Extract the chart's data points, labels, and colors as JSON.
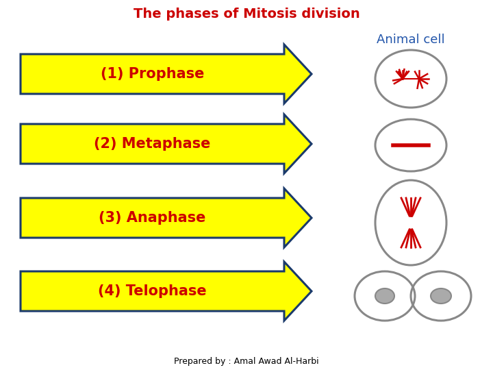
{
  "title": "The phases of Mitosis division",
  "title_color": "#CC0000",
  "title_fontsize": 14,
  "animal_cell_label": "Animal cell",
  "animal_cell_color": "#2255AA",
  "phases": [
    "(1) Prophase",
    "(2) Metaphase",
    "(3) Anaphase",
    "(4) Telophase"
  ],
  "phase_text_color": "#CC0000",
  "phase_fontsize": 15,
  "arrow_fill": "#FFFF00",
  "arrow_edge": "#1a3a6b",
  "footer": "Prepared by : Amal Awad Al-Harbi",
  "footer_fontsize": 9,
  "bg_color": "#FFFFFF",
  "cell_edge_color": "#888888",
  "red_color": "#CC0000",
  "gray_color": "#AAAAAA"
}
